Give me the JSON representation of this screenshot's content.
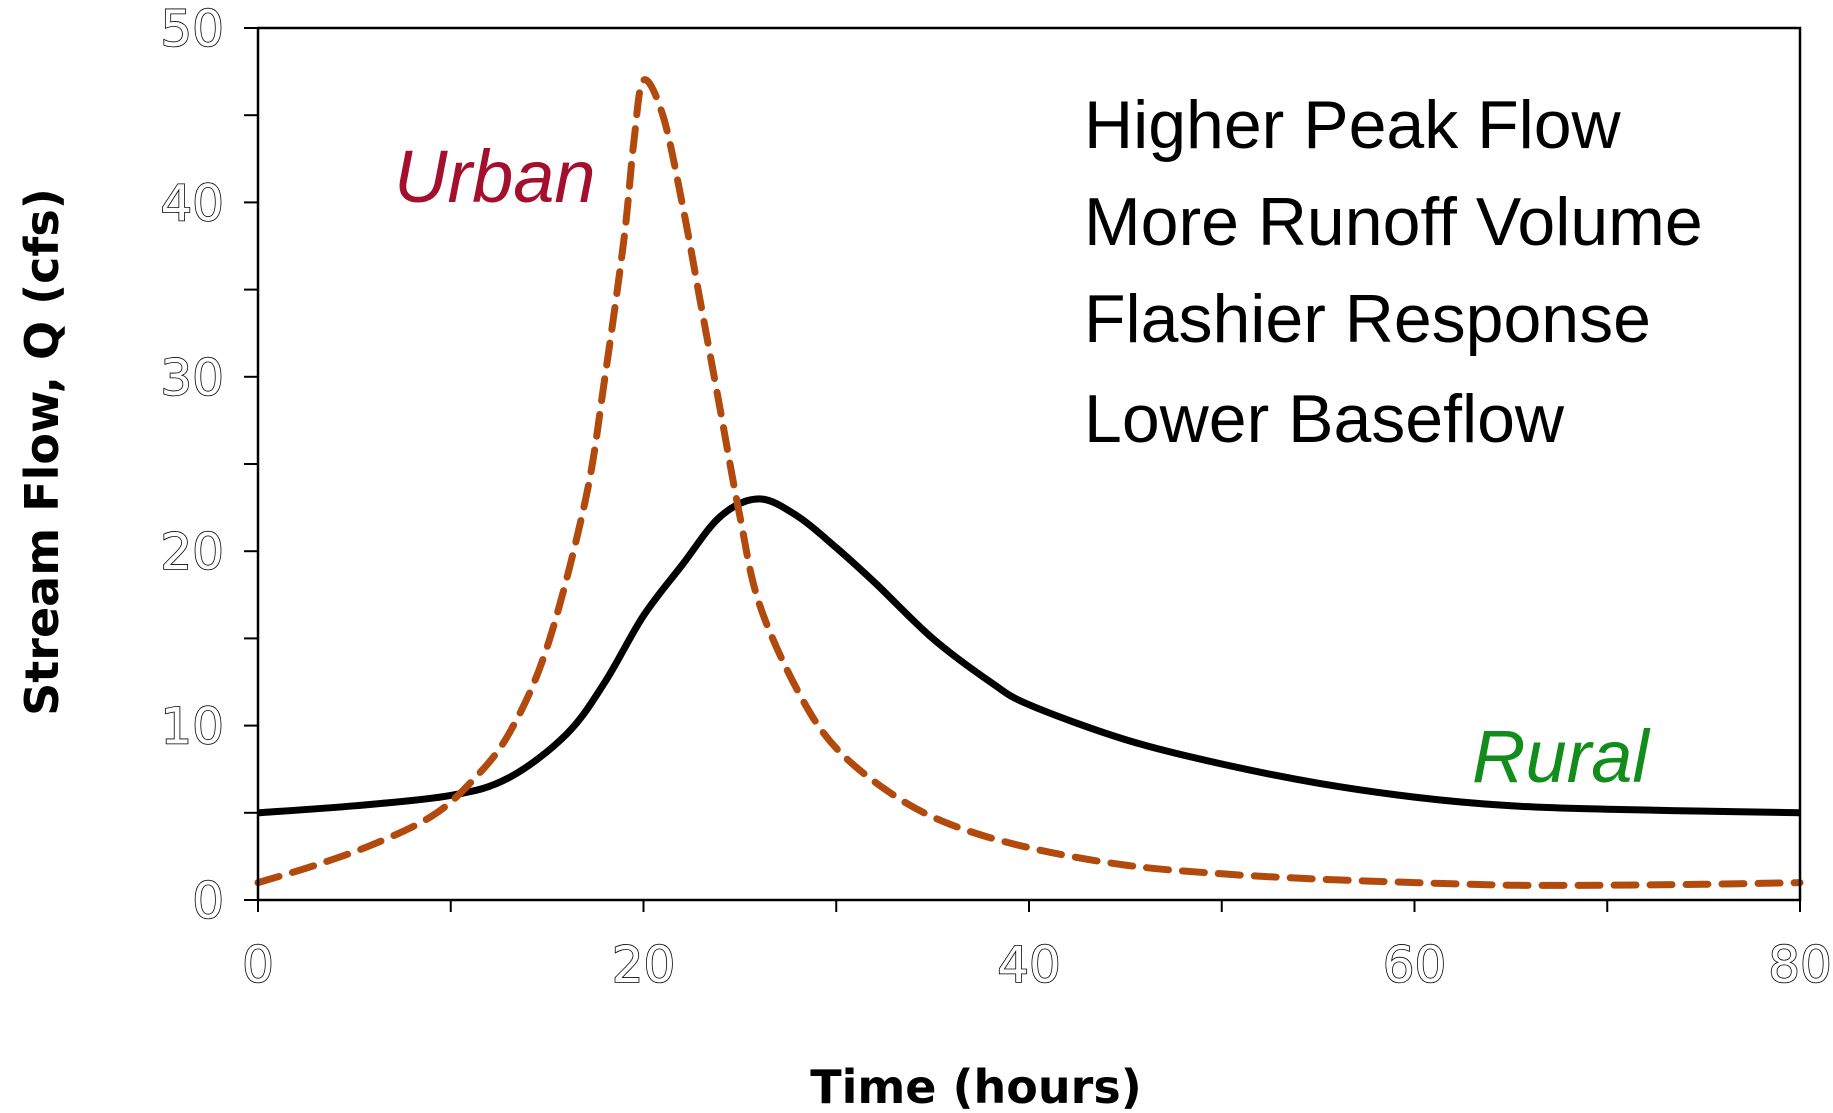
{
  "chart_data": {
    "type": "line",
    "xlabel": "Time (hours)",
    "ylabel": "Stream Flow, Q  (cfs)",
    "xlim": [
      0,
      80
    ],
    "ylim": [
      0,
      50
    ],
    "x_ticks": [
      "0",
      "20",
      "40",
      "60",
      "80"
    ],
    "y_ticks": [
      "0",
      "10",
      "20",
      "30",
      "40",
      "50"
    ],
    "x_minor_step": 10,
    "y_minor_step": 5,
    "grid": false,
    "legend": "none",
    "series": [
      {
        "name": "Rural",
        "color": "#000000",
        "style": "solid",
        "points": [
          [
            0,
            5
          ],
          [
            5,
            5.4
          ],
          [
            10,
            6
          ],
          [
            13,
            7
          ],
          [
            16,
            9.5
          ],
          [
            18,
            12.5
          ],
          [
            20,
            16.3
          ],
          [
            22,
            19.2
          ],
          [
            24,
            22
          ],
          [
            26,
            23
          ],
          [
            28,
            22
          ],
          [
            30,
            20.2
          ],
          [
            32,
            18.2
          ],
          [
            35,
            15
          ],
          [
            38,
            12.5
          ],
          [
            40,
            11.2
          ],
          [
            45,
            9.2
          ],
          [
            50,
            7.8
          ],
          [
            55,
            6.7
          ],
          [
            60,
            5.9
          ],
          [
            65,
            5.4
          ],
          [
            70,
            5.2
          ],
          [
            75,
            5.1
          ],
          [
            80,
            5
          ]
        ]
      },
      {
        "name": "Urban",
        "color": "#b24a0d",
        "style": "dashed",
        "points": [
          [
            0,
            1
          ],
          [
            3,
            2
          ],
          [
            6,
            3.2
          ],
          [
            9,
            4.8
          ],
          [
            11,
            6.7
          ],
          [
            13,
            9.5
          ],
          [
            15,
            14.5
          ],
          [
            17,
            23
          ],
          [
            18,
            30
          ],
          [
            19,
            38
          ],
          [
            19.5,
            43.5
          ],
          [
            20,
            47
          ],
          [
            21,
            45
          ],
          [
            22,
            40
          ],
          [
            23,
            34
          ],
          [
            24,
            28
          ],
          [
            25,
            22
          ],
          [
            26,
            17
          ],
          [
            28,
            12
          ],
          [
            30,
            8.7
          ],
          [
            33,
            6
          ],
          [
            36,
            4.3
          ],
          [
            40,
            3
          ],
          [
            45,
            2
          ],
          [
            50,
            1.5
          ],
          [
            55,
            1.2
          ],
          [
            60,
            1
          ],
          [
            65,
            0.85
          ],
          [
            70,
            0.85
          ],
          [
            75,
            0.9
          ],
          [
            80,
            1
          ]
        ]
      }
    ],
    "annotations": [
      {
        "text": "Urban",
        "color": "#a30f2c"
      },
      {
        "text": "Rural",
        "color": "#128c1a"
      }
    ],
    "notes": [
      "Higher Peak Flow",
      "More Runoff Volume",
      "Flashier Response",
      "Lower Baseflow"
    ]
  }
}
